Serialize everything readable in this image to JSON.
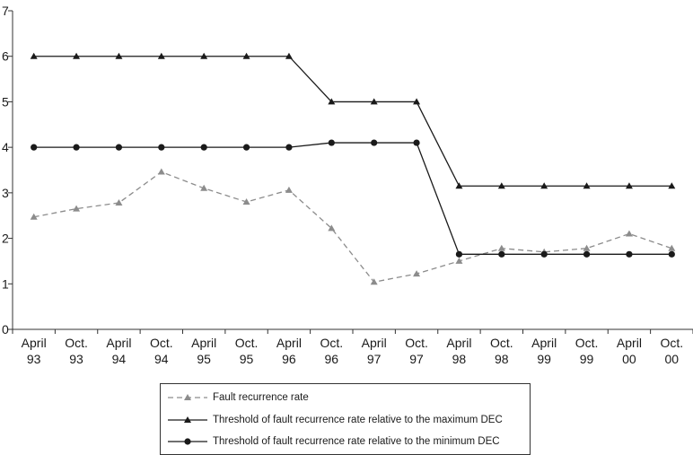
{
  "chart_data": {
    "type": "line",
    "title": "",
    "xlabel": "",
    "ylabel": "",
    "ylim": [
      0,
      7
    ],
    "yticks": [
      "0",
      "1",
      "2",
      "3",
      "4",
      "5",
      "6",
      "7"
    ],
    "categories": [
      [
        "April",
        "93"
      ],
      [
        "Oct.",
        "93"
      ],
      [
        "April",
        "94"
      ],
      [
        "Oct.",
        "94"
      ],
      [
        "April",
        "95"
      ],
      [
        "Oct.",
        "95"
      ],
      [
        "April",
        "96"
      ],
      [
        "Oct.",
        "96"
      ],
      [
        "April",
        "97"
      ],
      [
        "Oct.",
        "97"
      ],
      [
        "April",
        "98"
      ],
      [
        "Oct.",
        "98"
      ],
      [
        "April",
        "99"
      ],
      [
        "Oct.",
        "99"
      ],
      [
        "April",
        "00"
      ],
      [
        "Oct.",
        "00"
      ]
    ],
    "grid": false,
    "legend_position": "bottom",
    "series": [
      {
        "name": "Fault recurrence rate",
        "color": "#8c8c8c",
        "dash": true,
        "marker": "triangle",
        "values": [
          2.47,
          2.65,
          2.78,
          3.46,
          3.1,
          2.8,
          3.06,
          2.22,
          1.04,
          1.22,
          1.5,
          1.78,
          1.7,
          1.78,
          2.1,
          1.78
        ]
      },
      {
        "name": "Threshold of fault recurrence rate relative to the maximum DEC",
        "color": "#1a1a1a",
        "dash": false,
        "marker": "triangle",
        "values": [
          6,
          6,
          6,
          6,
          6,
          6,
          6,
          5,
          5,
          5,
          3.15,
          3.15,
          3.15,
          3.15,
          3.15,
          3.15
        ]
      },
      {
        "name": "Threshold of fault recurrence rate relative to the minimum DEC",
        "color": "#1a1a1a",
        "dash": false,
        "marker": "circle",
        "values": [
          4,
          4,
          4,
          4,
          4,
          4,
          4,
          4.1,
          4.1,
          4.1,
          1.65,
          1.65,
          1.65,
          1.65,
          1.65,
          1.65
        ]
      }
    ]
  }
}
